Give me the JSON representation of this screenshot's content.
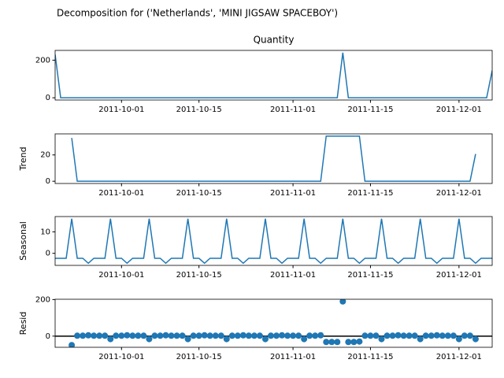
{
  "title": "Decomposition for ('Netherlands', 'MINI JIGSAW SPACEBOY')",
  "chart_data": [
    {
      "type": "line",
      "title": "Quantity",
      "color": "#1f77b4",
      "x": [
        "2011-09-19",
        "2011-09-20",
        "2011-09-21",
        "2011-09-22",
        "2011-09-23",
        "2011-09-24",
        "2011-09-25",
        "2011-09-26",
        "2011-09-27",
        "2011-09-28",
        "2011-09-29",
        "2011-09-30",
        "2011-10-01",
        "2011-10-02",
        "2011-10-03",
        "2011-10-04",
        "2011-10-05",
        "2011-10-06",
        "2011-10-07",
        "2011-10-08",
        "2011-10-09",
        "2011-10-10",
        "2011-10-11",
        "2011-10-12",
        "2011-10-13",
        "2011-10-14",
        "2011-10-15",
        "2011-10-16",
        "2011-10-17",
        "2011-10-18",
        "2011-10-19",
        "2011-10-20",
        "2011-10-21",
        "2011-10-22",
        "2011-10-23",
        "2011-10-24",
        "2011-10-25",
        "2011-10-26",
        "2011-10-27",
        "2011-10-28",
        "2011-10-29",
        "2011-10-30",
        "2011-10-31",
        "2011-11-01",
        "2011-11-02",
        "2011-11-03",
        "2011-11-04",
        "2011-11-05",
        "2011-11-06",
        "2011-11-07",
        "2011-11-08",
        "2011-11-09",
        "2011-11-10",
        "2011-11-11",
        "2011-11-12",
        "2011-11-13",
        "2011-11-14",
        "2011-11-15",
        "2011-11-16",
        "2011-11-17",
        "2011-11-18",
        "2011-11-19",
        "2011-11-20",
        "2011-11-21",
        "2011-11-22",
        "2011-11-23",
        "2011-11-24",
        "2011-11-25",
        "2011-11-26",
        "2011-11-27",
        "2011-11-28",
        "2011-11-29",
        "2011-11-30",
        "2011-12-01",
        "2011-12-02",
        "2011-12-03",
        "2011-12-04",
        "2011-12-05",
        "2011-12-06",
        "2011-12-07"
      ],
      "values": [
        230,
        0,
        0,
        0,
        0,
        0,
        0,
        0,
        0,
        0,
        0,
        0,
        0,
        0,
        0,
        0,
        0,
        0,
        0,
        0,
        0,
        0,
        0,
        0,
        0,
        0,
        0,
        0,
        0,
        0,
        0,
        0,
        0,
        0,
        0,
        0,
        0,
        0,
        0,
        0,
        0,
        0,
        0,
        0,
        0,
        0,
        0,
        0,
        0,
        0,
        0,
        0,
        240,
        0,
        0,
        0,
        0,
        0,
        0,
        0,
        0,
        0,
        0,
        0,
        0,
        0,
        0,
        0,
        0,
        0,
        0,
        0,
        0,
        0,
        0,
        0,
        0,
        0,
        0,
        145
      ],
      "xlim": [
        "2011-09-19",
        "2011-12-07"
      ],
      "xticks": [
        "2011-10-01",
        "2011-10-15",
        "2011-11-01",
        "2011-11-15",
        "2011-12-01"
      ],
      "ylim": [
        -12,
        252
      ],
      "yticks": [
        0,
        200
      ]
    },
    {
      "type": "line",
      "y_label": "Trend",
      "color": "#1f77b4",
      "values": [
        null,
        null,
        null,
        32.9,
        0,
        0,
        0,
        0,
        0,
        0,
        0,
        0,
        0,
        0,
        0,
        0,
        0,
        0,
        0,
        0,
        0,
        0,
        0,
        0,
        0,
        0,
        0,
        0,
        0,
        0,
        0,
        0,
        0,
        0,
        0,
        0,
        0,
        0,
        0,
        0,
        0,
        0,
        0,
        0,
        0,
        0,
        0,
        0,
        0,
        34.3,
        34.3,
        34.3,
        34.3,
        34.3,
        34.3,
        34.3,
        0,
        0,
        0,
        0,
        0,
        0,
        0,
        0,
        0,
        0,
        0,
        0,
        0,
        0,
        0,
        0,
        0,
        0,
        0,
        0,
        20.7,
        null,
        null,
        null
      ],
      "ylim": [
        -1.7,
        36
      ],
      "yticks": [
        0,
        20
      ]
    },
    {
      "type": "line",
      "y_label": "Seasonal",
      "color": "#1f77b4",
      "values": [
        -2.3,
        -2.3,
        -2.3,
        16.1,
        -2.3,
        -2.3,
        -4.6,
        -2.3,
        -2.3,
        -2.3,
        16.1,
        -2.3,
        -2.3,
        -4.6,
        -2.3,
        -2.3,
        -2.3,
        16.1,
        -2.3,
        -2.3,
        -4.6,
        -2.3,
        -2.3,
        -2.3,
        16.1,
        -2.3,
        -2.3,
        -4.6,
        -2.3,
        -2.3,
        -2.3,
        16.1,
        -2.3,
        -2.3,
        -4.6,
        -2.3,
        -2.3,
        -2.3,
        16.1,
        -2.3,
        -2.3,
        -4.6,
        -2.3,
        -2.3,
        -2.3,
        16.1,
        -2.3,
        -2.3,
        -4.6,
        -2.3,
        -2.3,
        -2.3,
        16.1,
        -2.3,
        -2.3,
        -4.6,
        -2.3,
        -2.3,
        -2.3,
        16.1,
        -2.3,
        -2.3,
        -4.6,
        -2.3,
        -2.3,
        -2.3,
        16.1,
        -2.3,
        -2.3,
        -4.6,
        -2.3,
        -2.3,
        -2.3,
        16.1,
        -2.3,
        -2.3,
        -4.6,
        -2.3,
        -2.3,
        -2.3
      ],
      "ylim": [
        -5.6,
        17.1
      ],
      "yticks": [
        0,
        10
      ]
    },
    {
      "type": "scatter",
      "y_label": "Resid",
      "color": "#1f77b4",
      "values": [
        null,
        null,
        null,
        -49.0,
        2.3,
        2.3,
        4.6,
        2.3,
        2.3,
        2.3,
        -16.1,
        2.3,
        2.3,
        4.6,
        2.3,
        2.3,
        2.3,
        -16.1,
        2.3,
        2.3,
        4.6,
        2.3,
        2.3,
        2.3,
        -16.1,
        2.3,
        2.3,
        4.6,
        2.3,
        2.3,
        2.3,
        -16.1,
        2.3,
        2.3,
        4.6,
        2.3,
        2.3,
        2.3,
        -16.1,
        2.3,
        2.3,
        4.6,
        2.3,
        2.3,
        2.3,
        -16.1,
        2.3,
        2.3,
        4.6,
        -32.0,
        -32.0,
        -32.0,
        189.6,
        -32.0,
        -32.0,
        -29.7,
        2.3,
        2.3,
        2.3,
        -16.1,
        2.3,
        2.3,
        4.6,
        2.3,
        2.3,
        2.3,
        -16.1,
        2.3,
        2.3,
        4.6,
        2.3,
        2.3,
        2.3,
        -16.1,
        2.3,
        2.3,
        -16.1,
        null,
        null,
        null
      ],
      "ylim": [
        -61,
        201.6
      ],
      "yticks": [
        0,
        200
      ]
    }
  ]
}
